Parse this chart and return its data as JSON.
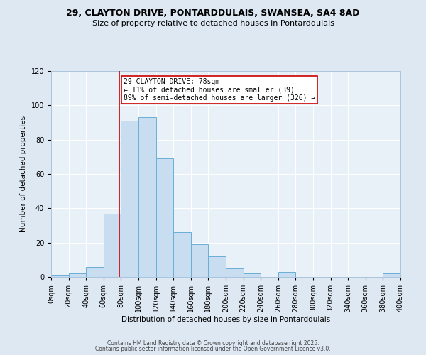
{
  "title": "29, CLAYTON DRIVE, PONTARDDULAIS, SWANSEA, SA4 8AD",
  "subtitle": "Size of property relative to detached houses in Pontarddulais",
  "xlabel": "Distribution of detached houses by size in Pontarddulais",
  "ylabel": "Number of detached properties",
  "bin_edges": [
    0,
    20,
    40,
    60,
    80,
    100,
    120,
    140,
    160,
    180,
    200,
    220,
    240,
    260,
    280,
    300,
    320,
    340,
    360,
    380,
    400
  ],
  "bin_counts": [
    1,
    2,
    6,
    37,
    91,
    93,
    69,
    26,
    19,
    12,
    5,
    2,
    0,
    3,
    0,
    0,
    0,
    0,
    0,
    2
  ],
  "bar_facecolor": "#c8ddf0",
  "bar_edgecolor": "#6aaed6",
  "vline_x": 78,
  "vline_color": "#cc0000",
  "annotation_title": "29 CLAYTON DRIVE: 78sqm",
  "annotation_line1": "← 11% of detached houses are smaller (39)",
  "annotation_line2": "89% of semi-detached houses are larger (326) →",
  "annotation_box_facecolor": "#ffffff",
  "annotation_box_edgecolor": "#cc0000",
  "ylim": [
    0,
    120
  ],
  "yticks": [
    0,
    20,
    40,
    60,
    80,
    100,
    120
  ],
  "xlim": [
    0,
    400
  ],
  "bg_color": "#dde8f3",
  "plot_bg_color": "#e8f1f8",
  "grid_color": "#ffffff",
  "footer1": "Contains HM Land Registry data © Crown copyright and database right 2025.",
  "footer2": "Contains public sector information licensed under the Open Government Licence v3.0.",
  "title_fontsize": 9,
  "subtitle_fontsize": 8,
  "axis_label_fontsize": 7.5,
  "tick_fontsize": 7,
  "annotation_fontsize": 7,
  "footer_fontsize": 5.5
}
